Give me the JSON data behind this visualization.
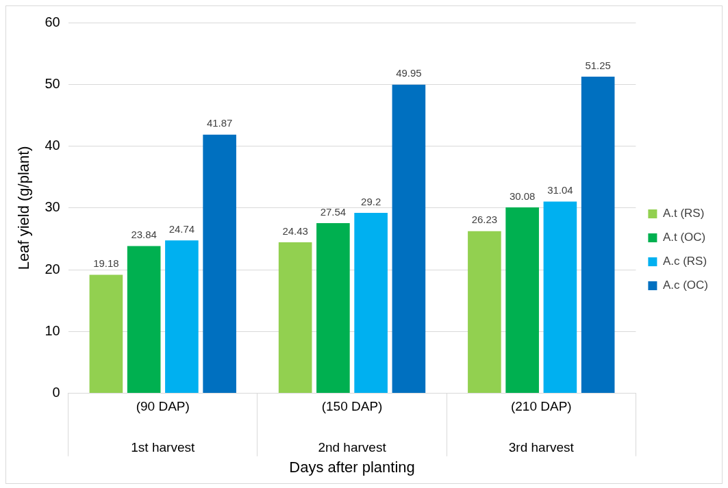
{
  "chart_data": {
    "type": "bar",
    "xlabel": "Days after planting",
    "ylabel": "Leaf yield (g/plant)",
    "categories": [
      "(90 DAP)\n1st harvest",
      "(150 DAP)\n2nd harvest",
      "(210 DAP)\n3rd harvest"
    ],
    "series": [
      {
        "name": "A.t (RS)",
        "color": "#92d050",
        "values": [
          19.18,
          24.43,
          26.23
        ]
      },
      {
        "name": "A.t (OC)",
        "color": "#00b050",
        "values": [
          23.84,
          27.54,
          30.08
        ]
      },
      {
        "name": "A.c (RS)",
        "color": "#00b0f0",
        "values": [
          24.74,
          29.2,
          31.04
        ]
      },
      {
        "name": "A.c (OC)",
        "color": "#0070c0",
        "values": [
          41.87,
          49.95,
          51.25
        ]
      }
    ],
    "ylim": [
      0,
      60
    ],
    "yticks": [
      0,
      10,
      20,
      30,
      40,
      50,
      60
    ],
    "grid": "y",
    "legend": "right",
    "data_labels": true
  }
}
